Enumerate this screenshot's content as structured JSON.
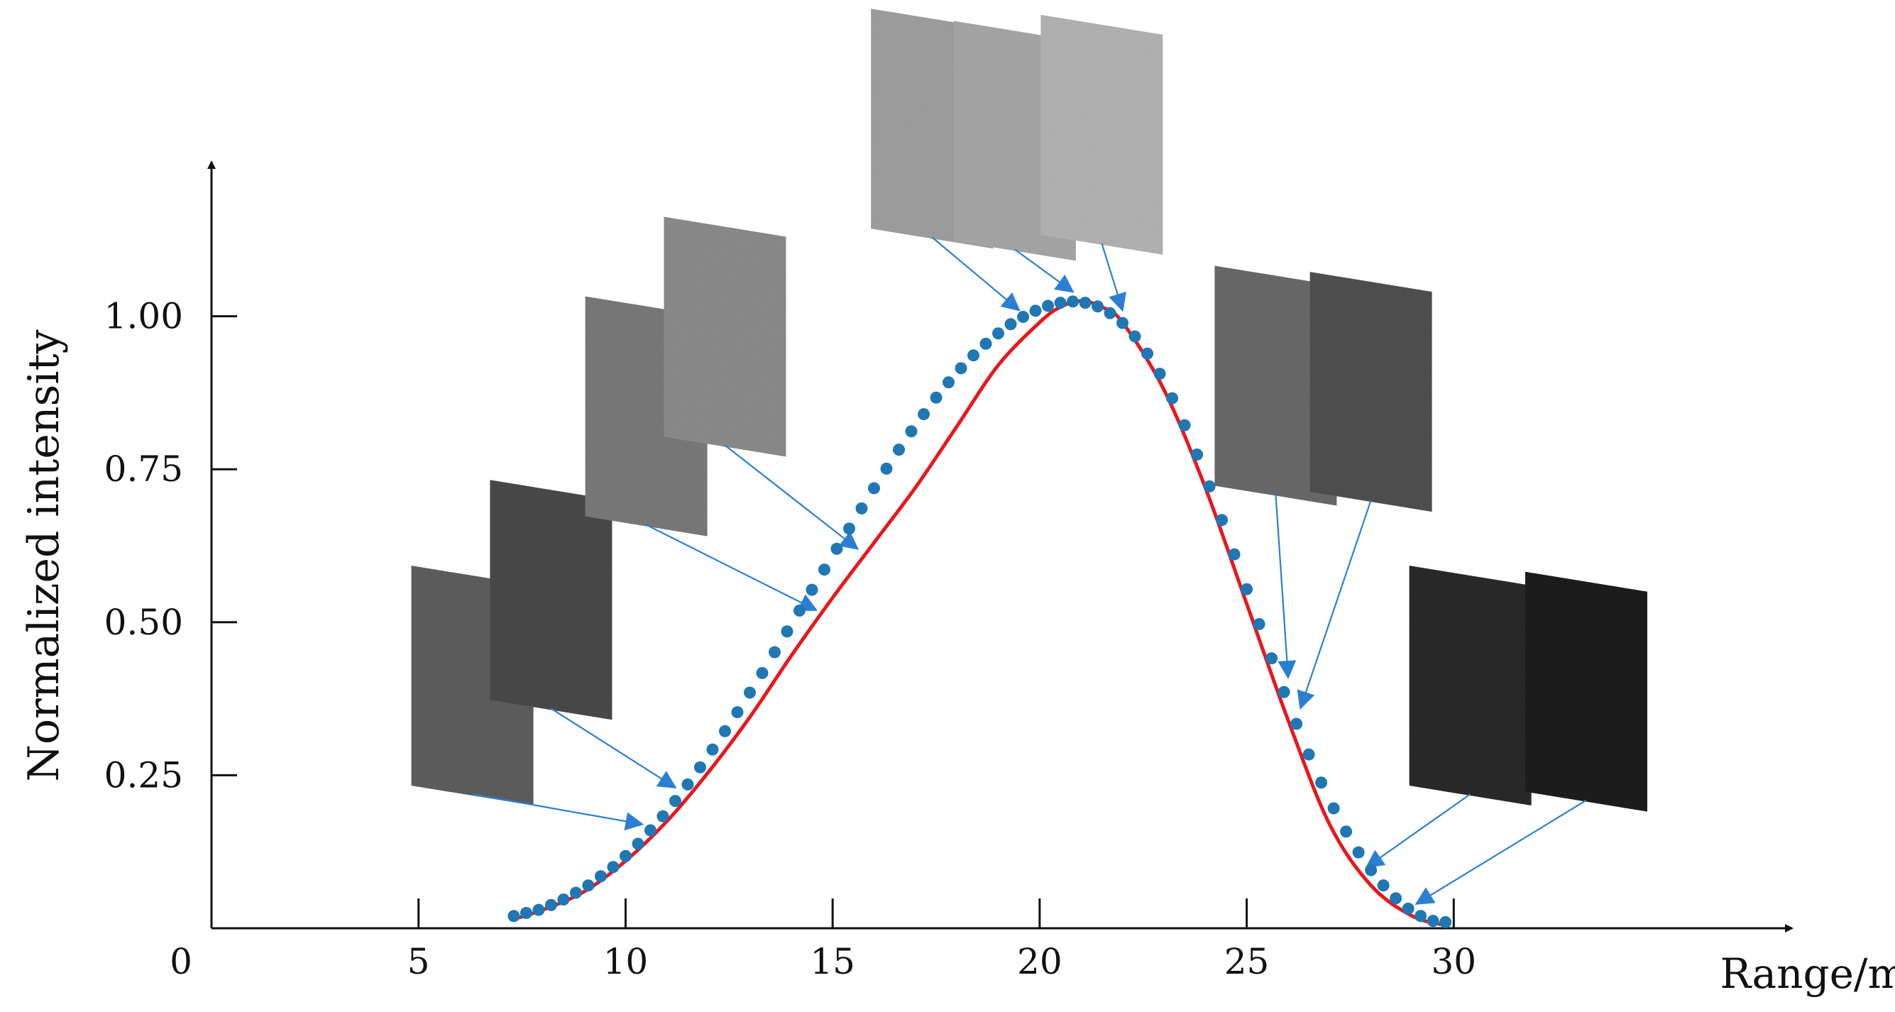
{
  "chart_data": {
    "type": "scatter",
    "title": "",
    "xlabel": "Range/m",
    "ylabel": "Normalized intensity",
    "xlim": [
      0,
      35
    ],
    "ylim": [
      0,
      1.25
    ],
    "origin_label": "0",
    "x_ticks": [
      5,
      10,
      15,
      20,
      25,
      30
    ],
    "x_tick_labels": [
      "5",
      "10",
      "15",
      "20",
      "25",
      "30"
    ],
    "y_ticks": [
      0.25,
      0.5,
      0.75,
      1.0
    ],
    "y_tick_labels": [
      "0.25",
      "0.50",
      "0.75",
      "1.00"
    ],
    "grid": false,
    "colors": {
      "points": "#1f77b4",
      "fit": "#e8171c",
      "arrows": "#2a7fd4",
      "axis": "#111111"
    },
    "series": [
      {
        "kind": "points",
        "x": [
          7.3,
          7.6,
          7.9,
          8.2,
          8.5,
          8.8,
          9.1,
          9.4,
          9.7,
          10.0,
          10.3,
          10.6,
          10.9,
          11.2,
          11.5,
          11.8,
          12.1,
          12.4,
          12.7,
          13.0,
          13.3,
          13.6,
          13.9,
          14.2,
          14.5,
          14.8,
          15.1,
          15.4,
          15.7,
          16.0,
          16.3,
          16.6,
          16.9,
          17.2,
          17.5,
          17.8,
          18.1,
          18.4,
          18.7,
          19.0,
          19.3,
          19.6,
          19.9,
          20.2,
          20.5,
          20.8,
          21.1,
          21.4,
          21.7,
          22.0,
          22.3,
          22.6,
          22.9,
          23.2,
          23.5,
          23.8,
          24.1,
          24.4,
          24.7,
          25.0,
          25.3,
          25.6,
          25.9,
          26.2,
          26.5,
          26.8,
          27.1,
          27.4,
          27.7,
          28.0,
          28.3,
          28.6,
          28.9,
          29.2,
          29.5,
          29.8
        ],
        "y": [
          0.02,
          0.025,
          0.03,
          0.038,
          0.047,
          0.058,
          0.07,
          0.085,
          0.1,
          0.118,
          0.138,
          0.16,
          0.183,
          0.208,
          0.235,
          0.263,
          0.292,
          0.322,
          0.353,
          0.385,
          0.417,
          0.451,
          0.485,
          0.519,
          0.553,
          0.586,
          0.62,
          0.653,
          0.686,
          0.719,
          0.751,
          0.782,
          0.812,
          0.84,
          0.867,
          0.892,
          0.915,
          0.936,
          0.955,
          0.972,
          0.987,
          0.999,
          1.009,
          1.017,
          1.022,
          1.024,
          1.022,
          1.016,
          1.005,
          0.989,
          0.967,
          0.939,
          0.906,
          0.866,
          0.822,
          0.774,
          0.722,
          0.667,
          0.611,
          0.554,
          0.497,
          0.441,
          0.386,
          0.334,
          0.284,
          0.238,
          0.196,
          0.158,
          0.124,
          0.095,
          0.07,
          0.049,
          0.032,
          0.02,
          0.012,
          0.01
        ]
      },
      {
        "kind": "fit",
        "x": [
          7.3,
          8.0,
          9.0,
          10.0,
          11.0,
          12.0,
          13.0,
          14.0,
          15.0,
          16.0,
          17.0,
          18.0,
          19.0,
          20.0,
          20.5,
          21.0,
          21.5,
          22.0,
          23.0,
          24.0,
          25.0,
          26.0,
          27.0,
          28.0,
          29.0,
          29.8
        ],
        "y": [
          0.015,
          0.03,
          0.06,
          0.11,
          0.175,
          0.255,
          0.345,
          0.445,
          0.54,
          0.63,
          0.72,
          0.82,
          0.92,
          0.99,
          1.015,
          1.025,
          1.015,
          0.99,
          0.88,
          0.72,
          0.53,
          0.34,
          0.17,
          0.07,
          0.02,
          0.005
        ]
      }
    ],
    "annotations": [
      {
        "kind": "image",
        "tone": "#5e5e5e",
        "from": [
          6.3,
          0.24
        ],
        "to": [
          10.4,
          0.17
        ]
      },
      {
        "kind": "image",
        "tone": "#4a4a4a",
        "from": [
          8.2,
          0.38
        ],
        "to": [
          11.2,
          0.23
        ]
      },
      {
        "kind": "image",
        "tone": "#7a7a7a",
        "from": [
          10.5,
          0.68
        ],
        "to": [
          14.6,
          0.52
        ]
      },
      {
        "kind": "image",
        "tone": "#8c8c8c",
        "from": [
          12.4,
          0.81
        ],
        "to": [
          15.6,
          0.62
        ]
      },
      {
        "kind": "image",
        "tone": "#a0a0a0",
        "from": [
          17.4,
          1.15
        ],
        "to": [
          19.5,
          1.01
        ]
      },
      {
        "kind": "image",
        "tone": "#a8a8a8",
        "from": [
          19.4,
          1.13
        ],
        "to": [
          20.8,
          1.04
        ]
      },
      {
        "kind": "image",
        "tone": "#b4b4b4",
        "from": [
          21.5,
          1.14
        ],
        "to": [
          22.0,
          1.01
        ]
      },
      {
        "kind": "image",
        "tone": "#6a6a6a",
        "from": [
          25.7,
          0.73
        ],
        "to": [
          26.0,
          0.41
        ]
      },
      {
        "kind": "image",
        "tone": "#505050",
        "from": [
          28.0,
          0.72
        ],
        "to": [
          26.3,
          0.36
        ]
      },
      {
        "kind": "image",
        "tone": "#2a2a2a",
        "from": [
          30.4,
          0.24
        ],
        "to": [
          27.9,
          0.1
        ]
      },
      {
        "kind": "image",
        "tone": "#1c1c1c",
        "from": [
          33.2,
          0.23
        ],
        "to": [
          29.1,
          0.04
        ]
      }
    ]
  }
}
